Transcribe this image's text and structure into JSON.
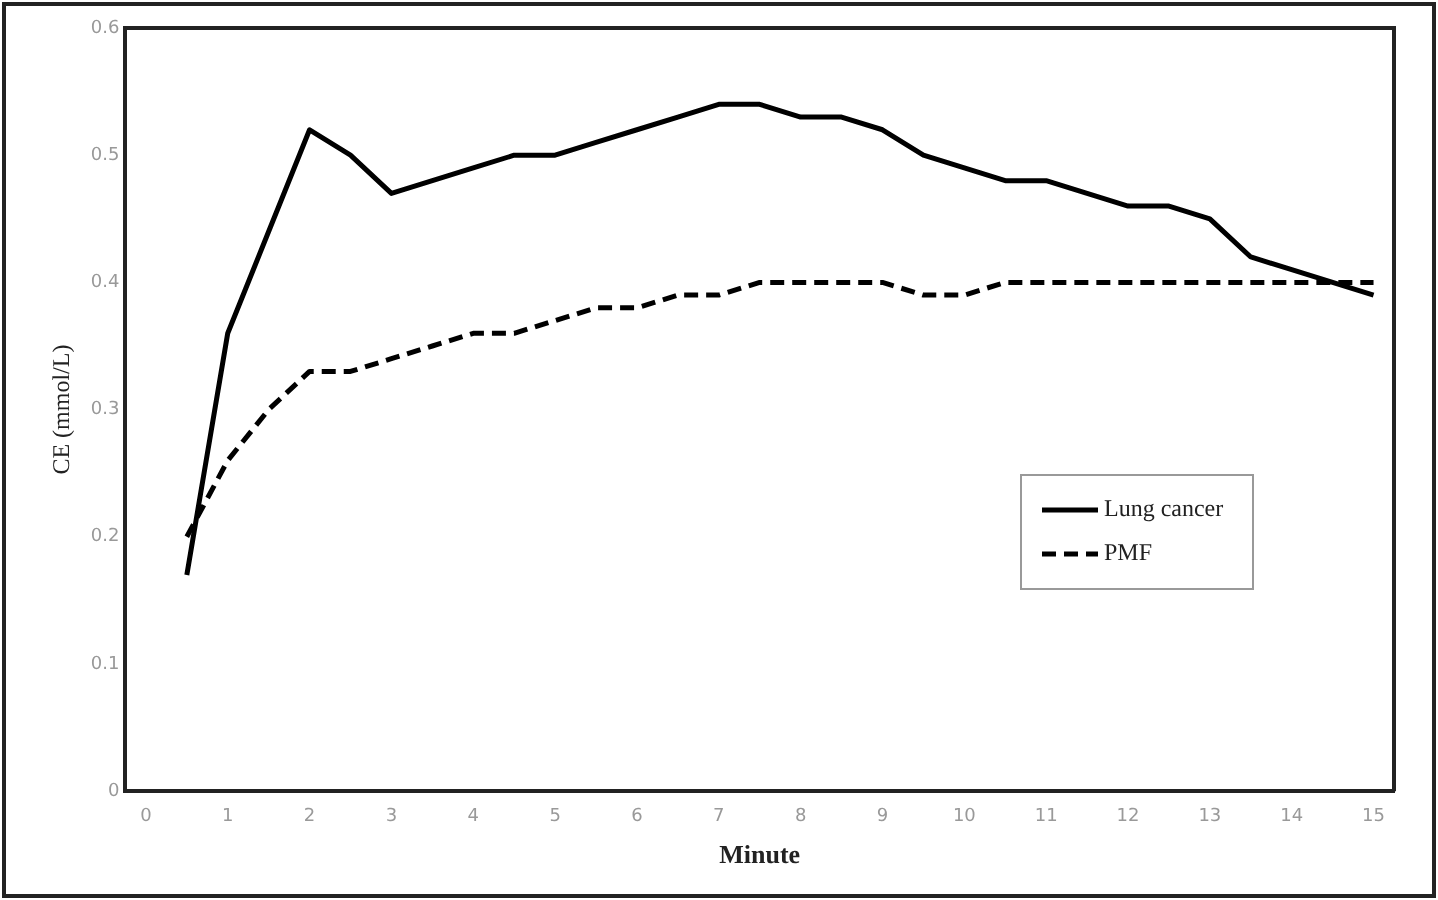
{
  "chart_data": {
    "type": "line",
    "xlabel": "Minute",
    "ylabel": "CE (mmol/L)",
    "x": [
      0.5,
      1,
      1.5,
      2,
      2.5,
      3,
      3.5,
      4,
      4.5,
      5,
      5.5,
      6,
      6.5,
      7,
      7.5,
      8,
      8.5,
      9,
      9.5,
      10,
      10.5,
      11,
      11.5,
      12,
      12.5,
      13,
      13.5,
      14,
      14.5,
      15
    ],
    "series": [
      {
        "name": "Lung cancer",
        "color": "#000000",
        "line_style": "solid",
        "values": [
          0.17,
          0.36,
          0.44,
          0.52,
          0.5,
          0.47,
          0.48,
          0.49,
          0.5,
          0.5,
          0.51,
          0.52,
          0.53,
          0.54,
          0.54,
          0.53,
          0.53,
          0.52,
          0.5,
          0.49,
          0.48,
          0.48,
          0.47,
          0.46,
          0.46,
          0.45,
          0.42,
          0.41,
          0.4,
          0.39
        ]
      },
      {
        "name": "PMF",
        "color": "#000000",
        "line_style": "dashed",
        "values": [
          0.2,
          0.26,
          0.3,
          0.33,
          0.33,
          0.34,
          0.35,
          0.36,
          0.36,
          0.37,
          0.38,
          0.38,
          0.39,
          0.39,
          0.4,
          0.4,
          0.4,
          0.4,
          0.39,
          0.39,
          0.4,
          0.4,
          0.4,
          0.4,
          0.4,
          0.4,
          0.4,
          0.4,
          0.4,
          0.4
        ]
      }
    ],
    "xlim": [
      -0.25,
      15.25
    ],
    "xticks": [
      0,
      1,
      2,
      3,
      4,
      5,
      6,
      7,
      8,
      9,
      10,
      11,
      12,
      13,
      14,
      15
    ],
    "ylim": [
      0,
      0.6
    ],
    "yticks": [
      0,
      0.1,
      0.2,
      0.3,
      0.4,
      0.5,
      0.6
    ],
    "grid": false,
    "legend": "right",
    "marker": "none"
  }
}
